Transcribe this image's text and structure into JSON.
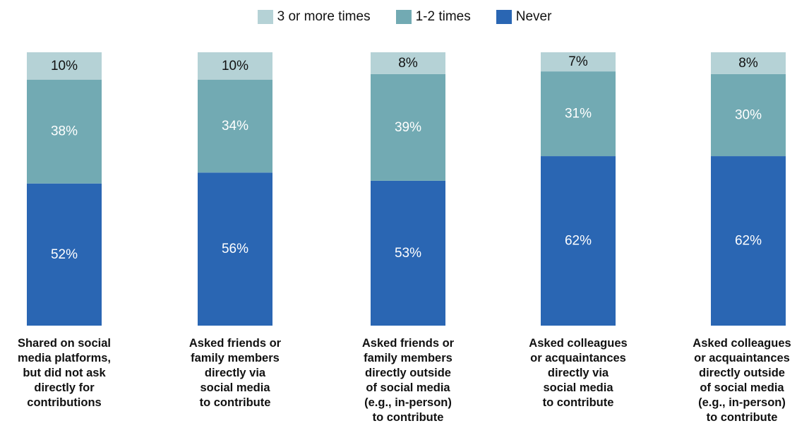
{
  "colors": {
    "three_plus": "#b5d2d6",
    "one_two": "#72aab3",
    "never": "#2a66b3"
  },
  "legend": [
    {
      "label": "3 or more times",
      "color": "#b5d2d6"
    },
    {
      "label": "1-2 times",
      "color": "#72aab3"
    },
    {
      "label": "Never",
      "color": "#2a66b3"
    }
  ],
  "chart_data": {
    "type": "bar",
    "stacked": true,
    "categories": [
      "Shared on social\nmedia platforms,\nbut did not ask\ndirectly for\ncontributions",
      "Asked friends or\nfamily members\ndirectly via\nsocial media\nto contribute",
      "Asked friends or\nfamily members\ndirectly outside\nof social media\n(e.g., in-person)\nto contribute",
      "Asked colleagues\nor acquaintances\ndirectly via\nsocial media\nto contribute",
      "Asked colleagues\nor acquaintances\ndirectly outside\nof social media\n(e.g., in-person)\nto contribute"
    ],
    "series": [
      {
        "name": "Never",
        "values": [
          52,
          56,
          53,
          62,
          62
        ],
        "labels": [
          "52%",
          "56%",
          "53%",
          "62%",
          "62%"
        ]
      },
      {
        "name": "1-2 times",
        "values": [
          38,
          34,
          39,
          31,
          30
        ],
        "labels": [
          "38%",
          "34%",
          "39%",
          "31%",
          "30%"
        ]
      },
      {
        "name": "3 or more times",
        "values": [
          10,
          10,
          8,
          7,
          8
        ],
        "labels": [
          "10%",
          "10%",
          "8%",
          "7%",
          "8%"
        ]
      }
    ],
    "ylim": [
      0,
      100
    ],
    "legend_position": "top-center",
    "grid": false
  }
}
